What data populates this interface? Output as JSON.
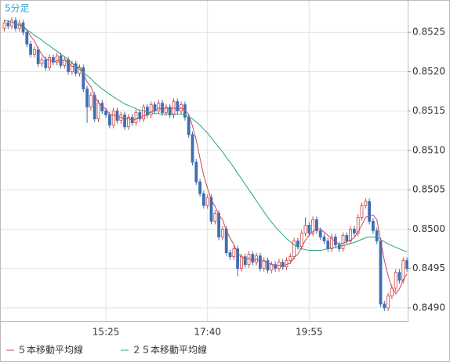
{
  "chart_data": {
    "type": "candlestick",
    "title": "5分足",
    "categories": [
      null,
      null,
      null,
      null,
      null,
      null,
      null,
      null,
      null,
      null,
      null,
      null,
      null,
      null,
      null,
      null,
      null,
      null,
      null,
      null,
      null,
      null,
      null,
      null,
      null,
      null,
      null,
      "15:25",
      null,
      null,
      null,
      null,
      null,
      null,
      null,
      null,
      null,
      null,
      null,
      null,
      null,
      null,
      null,
      null,
      null,
      null,
      null,
      null,
      null,
      null,
      null,
      null,
      null,
      null,
      "17:40",
      null,
      null,
      null,
      null,
      null,
      null,
      null,
      null,
      null,
      null,
      null,
      null,
      null,
      null,
      null,
      null,
      null,
      null,
      null,
      null,
      null,
      null,
      null,
      null,
      null,
      null,
      "19:55",
      null,
      null,
      null,
      null,
      null,
      null,
      null,
      null,
      null,
      null,
      null,
      null,
      null,
      null,
      null,
      null,
      null,
      null,
      null,
      null,
      null,
      null,
      null,
      null,
      null,
      null
    ],
    "open": [
      0.85255,
      0.85262,
      0.85258,
      0.85265,
      0.85255,
      0.85262,
      0.8525,
      0.85235,
      0.85222,
      0.85228,
      0.8521,
      0.85215,
      0.85205,
      0.85218,
      0.85212,
      0.8522,
      0.85208,
      0.85215,
      0.852,
      0.8521,
      0.85198,
      0.85205,
      0.85178,
      0.85155,
      0.8517,
      0.8514,
      0.8516,
      0.8515,
      0.85145,
      0.85132,
      0.8515,
      0.85138,
      0.85145,
      0.8513,
      0.85142,
      0.85135,
      0.85148,
      0.8514,
      0.85155,
      0.85145,
      0.85158,
      0.8515,
      0.8516,
      0.85148,
      0.85155,
      0.85145,
      0.85162,
      0.8515,
      0.85158,
      0.85142,
      0.8512,
      0.85085,
      0.8506,
      0.85045,
      0.8503,
      0.8504,
      0.8501,
      0.8502,
      0.8499,
      0.85,
      0.8497,
      0.84965,
      0.84975,
      0.8495,
      0.84965,
      0.84955,
      0.84968,
      0.84958,
      0.84966,
      0.8495,
      0.8496,
      0.84948,
      0.84955,
      0.8495,
      0.84958,
      0.84952,
      0.8496,
      0.84965,
      0.84985,
      0.84978,
      0.84995,
      0.85005,
      0.84995,
      0.85012,
      0.84998,
      0.8499,
      0.84985,
      0.84975,
      0.8499,
      0.8498,
      0.84975,
      0.84992,
      0.84985,
      0.85,
      0.84995,
      0.85015,
      0.8503,
      0.85035,
      0.8501,
      0.84998,
      0.84985,
      0.84905,
      0.849,
      0.84915,
      0.84925,
      0.84945,
      0.84935,
      0.8496
    ],
    "high": [
      0.85266,
      0.85266,
      0.85269,
      0.85269,
      0.85266,
      0.85266,
      0.85254,
      0.85239,
      0.85232,
      0.85232,
      0.85219,
      0.85219,
      0.85222,
      0.85222,
      0.85224,
      0.85224,
      0.85219,
      0.85219,
      0.85214,
      0.85214,
      0.85209,
      0.85209,
      0.85182,
      0.85174,
      0.85174,
      0.85164,
      0.85164,
      0.85154,
      0.85149,
      0.85154,
      0.85154,
      0.85149,
      0.85149,
      0.85146,
      0.85146,
      0.85152,
      0.85152,
      0.85159,
      0.85159,
      0.85162,
      0.85162,
      0.85164,
      0.85164,
      0.85159,
      0.85159,
      0.85166,
      0.85166,
      0.85162,
      0.85162,
      0.85146,
      0.85124,
      0.85089,
      0.85064,
      0.85049,
      0.85044,
      0.85044,
      0.85024,
      0.85024,
      0.85004,
      0.85004,
      0.84974,
      0.84979,
      0.84979,
      0.84969,
      0.84969,
      0.84972,
      0.84972,
      0.8497,
      0.8497,
      0.84964,
      0.84964,
      0.84959,
      0.84959,
      0.84962,
      0.84962,
      0.84964,
      0.84969,
      0.84989,
      0.84989,
      0.84999,
      0.85015,
      0.85009,
      0.85016,
      0.85016,
      0.85002,
      0.84994,
      0.84989,
      0.84994,
      0.84994,
      0.84984,
      0.84996,
      0.84996,
      0.85004,
      0.85004,
      0.85019,
      0.85034,
      0.85039,
      0.85039,
      0.85014,
      0.85002,
      0.84989,
      0.84909,
      0.84919,
      0.84929,
      0.84949,
      0.84949,
      0.84964,
      0.84964
    ],
    "low": [
      0.85251,
      0.85254,
      0.85254,
      0.85251,
      0.85251,
      0.85246,
      0.85231,
      0.85218,
      0.85218,
      0.85206,
      0.85206,
      0.85201,
      0.85201,
      0.85208,
      0.85208,
      0.85204,
      0.85204,
      0.85196,
      0.85196,
      0.85194,
      0.85194,
      0.85174,
      0.85135,
      0.85151,
      0.85136,
      0.85136,
      0.85146,
      0.85141,
      0.85128,
      0.85128,
      0.85134,
      0.85134,
      0.85126,
      0.85126,
      0.85131,
      0.85131,
      0.85136,
      0.85136,
      0.85141,
      0.85141,
      0.85146,
      0.85146,
      0.85144,
      0.85144,
      0.85141,
      0.85141,
      0.85146,
      0.85146,
      0.85138,
      0.85116,
      0.85081,
      0.85056,
      0.85041,
      0.85026,
      0.85026,
      0.85006,
      0.85006,
      0.84986,
      0.84986,
      0.84966,
      0.84961,
      0.84961,
      0.8494,
      0.84946,
      0.84951,
      0.84951,
      0.84954,
      0.84954,
      0.84946,
      0.84946,
      0.84944,
      0.84944,
      0.84946,
      0.84946,
      0.84948,
      0.84948,
      0.84956,
      0.84961,
      0.84974,
      0.84974,
      0.84991,
      0.84991,
      0.84991,
      0.84994,
      0.84986,
      0.84981,
      0.84971,
      0.84971,
      0.84976,
      0.84971,
      0.84971,
      0.84981,
      0.84981,
      0.84991,
      0.84991,
      0.85011,
      0.85026,
      0.85006,
      0.84994,
      0.84981,
      0.84901,
      0.84896,
      0.84896,
      0.84911,
      0.84921,
      0.84931,
      0.84931,
      0.84946
    ],
    "close": [
      0.85262,
      0.85258,
      0.85265,
      0.85255,
      0.85262,
      0.8525,
      0.85235,
      0.85222,
      0.85228,
      0.8521,
      0.85215,
      0.85205,
      0.85218,
      0.85212,
      0.8522,
      0.85208,
      0.85215,
      0.852,
      0.8521,
      0.85198,
      0.85205,
      0.85178,
      0.85155,
      0.8517,
      0.8514,
      0.8516,
      0.8515,
      0.85145,
      0.85132,
      0.8515,
      0.85138,
      0.85145,
      0.8513,
      0.85142,
      0.85135,
      0.85148,
      0.8514,
      0.85155,
      0.85145,
      0.85158,
      0.8515,
      0.8516,
      0.85148,
      0.85155,
      0.85145,
      0.85162,
      0.8515,
      0.85158,
      0.85142,
      0.8512,
      0.85085,
      0.8506,
      0.85045,
      0.8503,
      0.8504,
      0.8501,
      0.8502,
      0.8499,
      0.85,
      0.8497,
      0.84965,
      0.84975,
      0.8495,
      0.84965,
      0.84955,
      0.84968,
      0.84958,
      0.84966,
      0.8495,
      0.8496,
      0.84948,
      0.84955,
      0.8495,
      0.84958,
      0.84952,
      0.8496,
      0.84965,
      0.84985,
      0.84978,
      0.84995,
      0.85005,
      0.84995,
      0.85012,
      0.84998,
      0.8499,
      0.84985,
      0.84975,
      0.8499,
      0.8498,
      0.84975,
      0.84992,
      0.84985,
      0.85,
      0.84995,
      0.85015,
      0.8503,
      0.85035,
      0.8501,
      0.84998,
      0.84985,
      0.84905,
      0.849,
      0.84915,
      0.84925,
      0.84945,
      0.84935,
      0.8496,
      0.8495
    ],
    "up_color": "#d04848",
    "down_color": "#3f6fb4",
    "series": [
      {
        "name": "５本移動平均線",
        "color": "#c8485a",
        "values": [
          null,
          null,
          null,
          null,
          0.8526,
          0.85258,
          0.85253,
          0.85245,
          0.85239,
          0.85229,
          0.85222,
          0.85216,
          0.85215,
          0.85212,
          0.85214,
          0.85213,
          0.85215,
          0.85211,
          0.85207,
          0.85206,
          0.85206,
          0.85198,
          0.85187,
          0.85181,
          0.85169,
          0.85161,
          0.85155,
          0.85153,
          0.85145,
          0.85145,
          0.85143,
          0.85142,
          0.85139,
          0.85141,
          0.85138,
          0.8514,
          0.85141,
          0.85144,
          0.85145,
          0.85149,
          0.8515,
          0.85154,
          0.85152,
          0.85154,
          0.85152,
          0.85154,
          0.85152,
          0.85154,
          0.85151,
          0.85146,
          0.85131,
          0.85113,
          0.8509,
          0.85068,
          0.85052,
          0.85037,
          0.85029,
          0.85018,
          0.85012,
          0.84998,
          0.84989,
          0.8498,
          0.8497,
          0.84965,
          0.84962,
          0.84963,
          0.84959,
          0.84962,
          0.84959,
          0.8496,
          0.84956,
          0.84956,
          0.84953,
          0.84954,
          0.84953,
          0.84955,
          0.84957,
          0.84964,
          0.84968,
          0.84977,
          0.84986,
          0.84992,
          0.84997,
          0.85001,
          0.85,
          0.84996,
          0.84992,
          0.84988,
          0.84984,
          0.84981,
          0.84982,
          0.84984,
          0.84986,
          0.84989,
          0.84997,
          0.85005,
          0.85015,
          0.85017,
          0.85018,
          0.85012,
          0.84986,
          0.8496,
          0.84941,
          0.84926,
          0.84918,
          0.84924,
          0.84936,
          0.84943
        ]
      },
      {
        "name": "２５本移動平均線",
        "color": "#2aa37a",
        "values": [
          0.85265,
          0.85264,
          0.85263,
          0.85261,
          0.85259,
          0.85256,
          0.85253,
          0.8525,
          0.85246,
          0.85243,
          0.8524,
          0.85236,
          0.85233,
          0.85229,
          0.85226,
          0.85222,
          0.85219,
          0.85215,
          0.85211,
          0.85207,
          0.85203,
          0.85199,
          0.85195,
          0.85191,
          0.85186,
          0.85182,
          0.85178,
          0.85175,
          0.85171,
          0.85168,
          0.85165,
          0.85162,
          0.85159,
          0.85157,
          0.85155,
          0.85153,
          0.85151,
          0.8515,
          0.85149,
          0.85148,
          0.85147,
          0.85147,
          0.85146,
          0.85146,
          0.85146,
          0.85146,
          0.85146,
          0.85146,
          0.85145,
          0.85143,
          0.8514,
          0.85136,
          0.85132,
          0.85127,
          0.85122,
          0.85116,
          0.8511,
          0.85104,
          0.85098,
          0.85091,
          0.85085,
          0.85078,
          0.85071,
          0.85064,
          0.85057,
          0.8505,
          0.85043,
          0.85036,
          0.85029,
          0.85022,
          0.85015,
          0.85009,
          0.85003,
          0.84998,
          0.84993,
          0.84988,
          0.84984,
          0.8498,
          0.84977,
          0.84975,
          0.84974,
          0.84973,
          0.84973,
          0.84973,
          0.84973,
          0.84974,
          0.84975,
          0.84976,
          0.84977,
          0.84978,
          0.84979,
          0.8498,
          0.84982,
          0.84983,
          0.84985,
          0.84987,
          0.84989,
          0.8499,
          0.8499,
          0.8499,
          0.84987,
          0.84984,
          0.84981,
          0.84979,
          0.84977,
          0.84975,
          0.84973,
          0.84971
        ]
      }
    ],
    "ylim": [
      0.84883,
      0.8529
    ],
    "yticks": [
      {
        "value": 0.849,
        "label": "0.8490"
      },
      0.8495,
      {
        "value": 0.85,
        "label": "0.8500"
      },
      0.8505,
      {
        "value": 0.851,
        "label": "0.8510"
      },
      0.8515,
      {
        "value": 0.852,
        "label": "0.8520"
      },
      0.8525
    ],
    "grid": true
  }
}
